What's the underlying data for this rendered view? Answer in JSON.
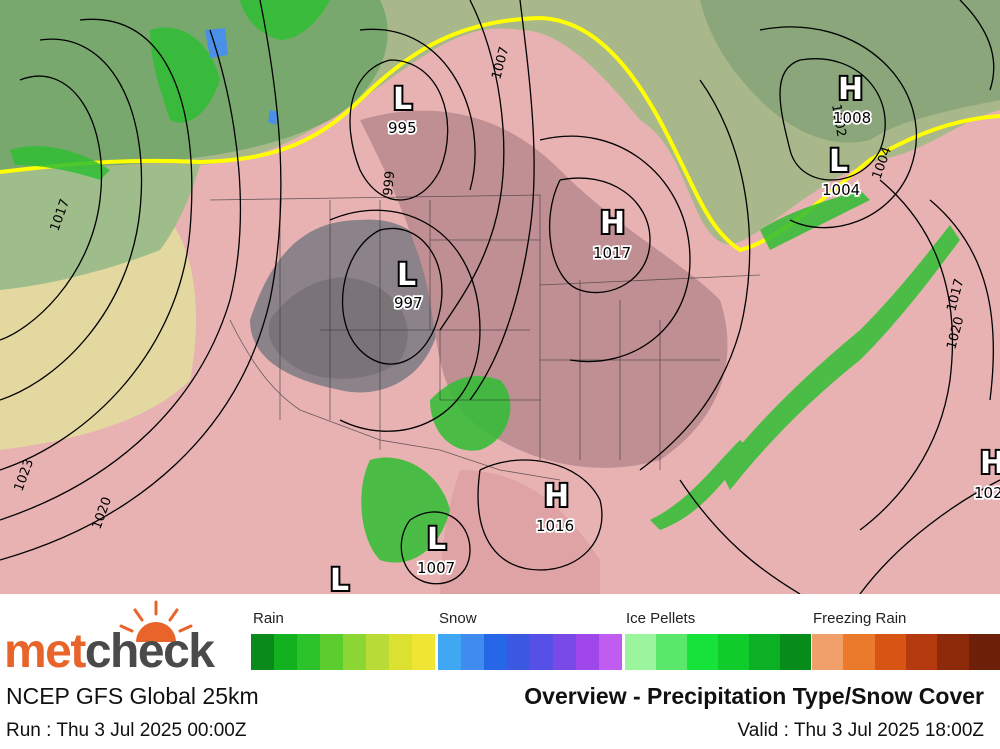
{
  "map": {
    "pressure_systems": [
      {
        "type": "L",
        "value": "995"
      },
      {
        "type": "L",
        "value": "997"
      },
      {
        "type": "H",
        "value": "1017"
      },
      {
        "type": "H",
        "value": "1008"
      },
      {
        "type": "L",
        "value": "1004"
      },
      {
        "type": "H",
        "value": "1016"
      },
      {
        "type": "L",
        "value": "1007"
      },
      {
        "type": "H",
        "value": "102"
      },
      {
        "type": "L",
        "value": ""
      }
    ],
    "isobar_labels": [
      "1017",
      "1007",
      "999",
      "1002",
      "1023",
      "1020",
      "1004",
      "1017",
      "1020"
    ],
    "colors": {
      "rain_freezing_zone_line": "#ffff00",
      "isobar": "#000000"
    }
  },
  "legend": {
    "categories": [
      {
        "label": "Rain",
        "colors": [
          "#0b8a1c",
          "#13b01f",
          "#2cc22a",
          "#5ccd2f",
          "#8bd534",
          "#b8dc35",
          "#dbe031",
          "#f0e532"
        ]
      },
      {
        "label": "Snow",
        "colors": [
          "#40a7f2",
          "#3f8cf0",
          "#2567e6",
          "#3b58e0",
          "#5650e6",
          "#7a4ae8",
          "#9f47ea",
          "#c05cf0"
        ]
      },
      {
        "label": "Ice Pellets",
        "colors": [
          "#9af59d",
          "#5ae86a",
          "#17e23a",
          "#0fcc2a",
          "#0bb024",
          "#078c1a"
        ]
      },
      {
        "label": "Freezing Rain",
        "colors": [
          "#f2a06a",
          "#ec7a2c",
          "#d85414",
          "#b23a0e",
          "#8c2a0a",
          "#6e2008"
        ]
      }
    ]
  },
  "logo": {
    "part1": "met",
    "part2": "check"
  },
  "footer": {
    "model": "NCEP GFS Global 25km",
    "title": "Overview - Precipitation Type/Snow Cover",
    "run": "Run : Thu 3 Jul 2025 00:00Z",
    "valid": "Valid : Thu 3 Jul 2025 18:00Z"
  }
}
